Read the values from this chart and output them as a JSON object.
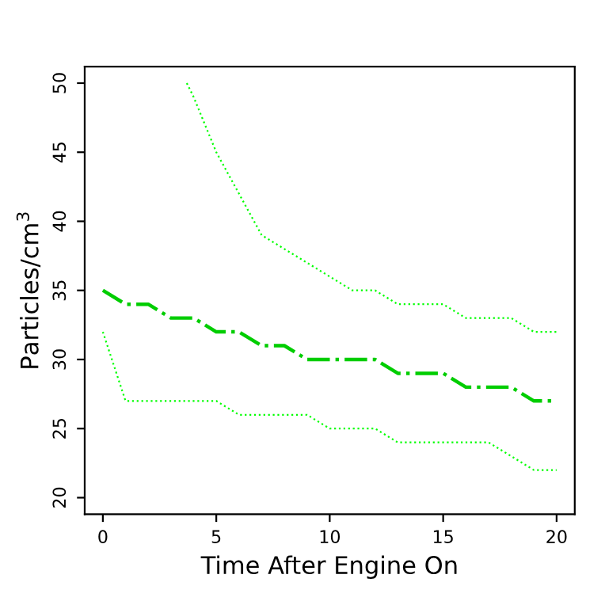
{
  "chart_data": {
    "type": "line",
    "xlabel": "Time After Engine On",
    "ylabel": "Particles/cm$^{3}$",
    "x": [
      0,
      1,
      2,
      3,
      4,
      5,
      6,
      7,
      8,
      9,
      10,
      11,
      12,
      13,
      14,
      15,
      16,
      17,
      18,
      19,
      20
    ],
    "series": [
      {
        "color": "#00ff00",
        "line_style": "dotted",
        "x": [
          3.7,
          4,
          5,
          6,
          7,
          8,
          9,
          10,
          11,
          12,
          13,
          14,
          15,
          16,
          17,
          18,
          19,
          20
        ],
        "values": [
          50,
          49,
          45,
          42,
          39,
          38,
          37,
          36,
          35,
          35,
          34,
          34,
          34,
          33,
          33,
          33,
          32,
          32
        ]
      },
      {
        "color": "#00cd00",
        "line_style": "dashdot",
        "values": [
          35,
          34,
          34,
          33,
          33,
          32,
          32,
          31,
          31,
          30,
          30,
          30,
          30,
          29,
          29,
          29,
          28,
          28,
          28,
          27,
          27
        ]
      },
      {
        "color": "#00ff00",
        "line_style": "dotted",
        "values": [
          32,
          27,
          27,
          27,
          27,
          27,
          26,
          26,
          26,
          26,
          25,
          25,
          25,
          24,
          24,
          24,
          24,
          24,
          23,
          22,
          22
        ]
      }
    ],
    "xlim": [
      -0.8,
      20.8
    ],
    "ylim": [
      18.8,
      51.2
    ],
    "xticks": [
      0,
      5,
      10,
      15,
      20
    ],
    "yticks": [
      20,
      25,
      30,
      35,
      40,
      45,
      50
    ],
    "grid": false,
    "legend": false
  }
}
